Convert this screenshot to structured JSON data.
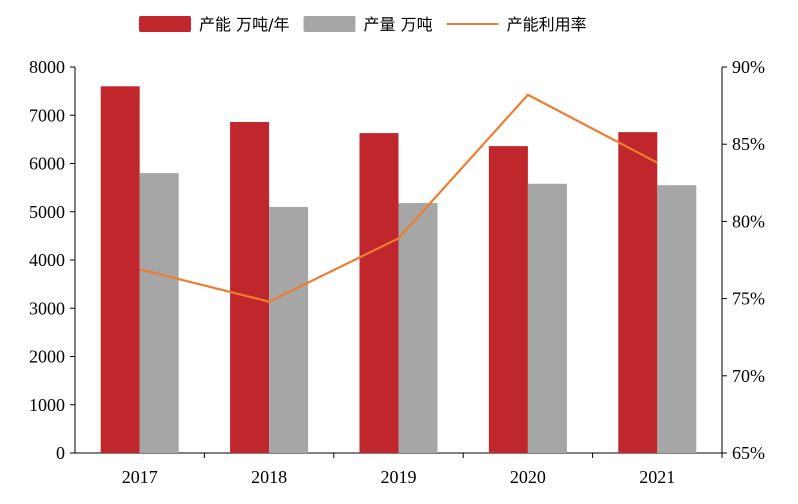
{
  "chart_data": {
    "type": "bar",
    "categories": [
      "2017",
      "2018",
      "2019",
      "2020",
      "2021"
    ],
    "series": [
      {
        "name": "产能 万吨/年",
        "type": "bar",
        "axis": "left",
        "color": "#C0272D",
        "values": [
          7600,
          6860,
          6630,
          6360,
          6650
        ]
      },
      {
        "name": "产量 万吨",
        "type": "bar",
        "axis": "left",
        "color": "#A6A6A6",
        "values": [
          5800,
          5100,
          5180,
          5580,
          5550
        ]
      },
      {
        "name": "产能利用率",
        "type": "line",
        "axis": "right",
        "color": "#ED7D31",
        "values": [
          76.9,
          74.8,
          78.9,
          88.2,
          83.8
        ]
      }
    ],
    "ylim_left": [
      0,
      8000
    ],
    "yticks_left": [
      "0",
      "1000",
      "2000",
      "3000",
      "4000",
      "5000",
      "6000",
      "7000",
      "8000"
    ],
    "ylim_right": [
      65,
      90
    ],
    "yticks_right": [
      "65%",
      "70%",
      "75%",
      "80%",
      "85%",
      "90%"
    ],
    "grid": false,
    "legend_position": "top"
  }
}
